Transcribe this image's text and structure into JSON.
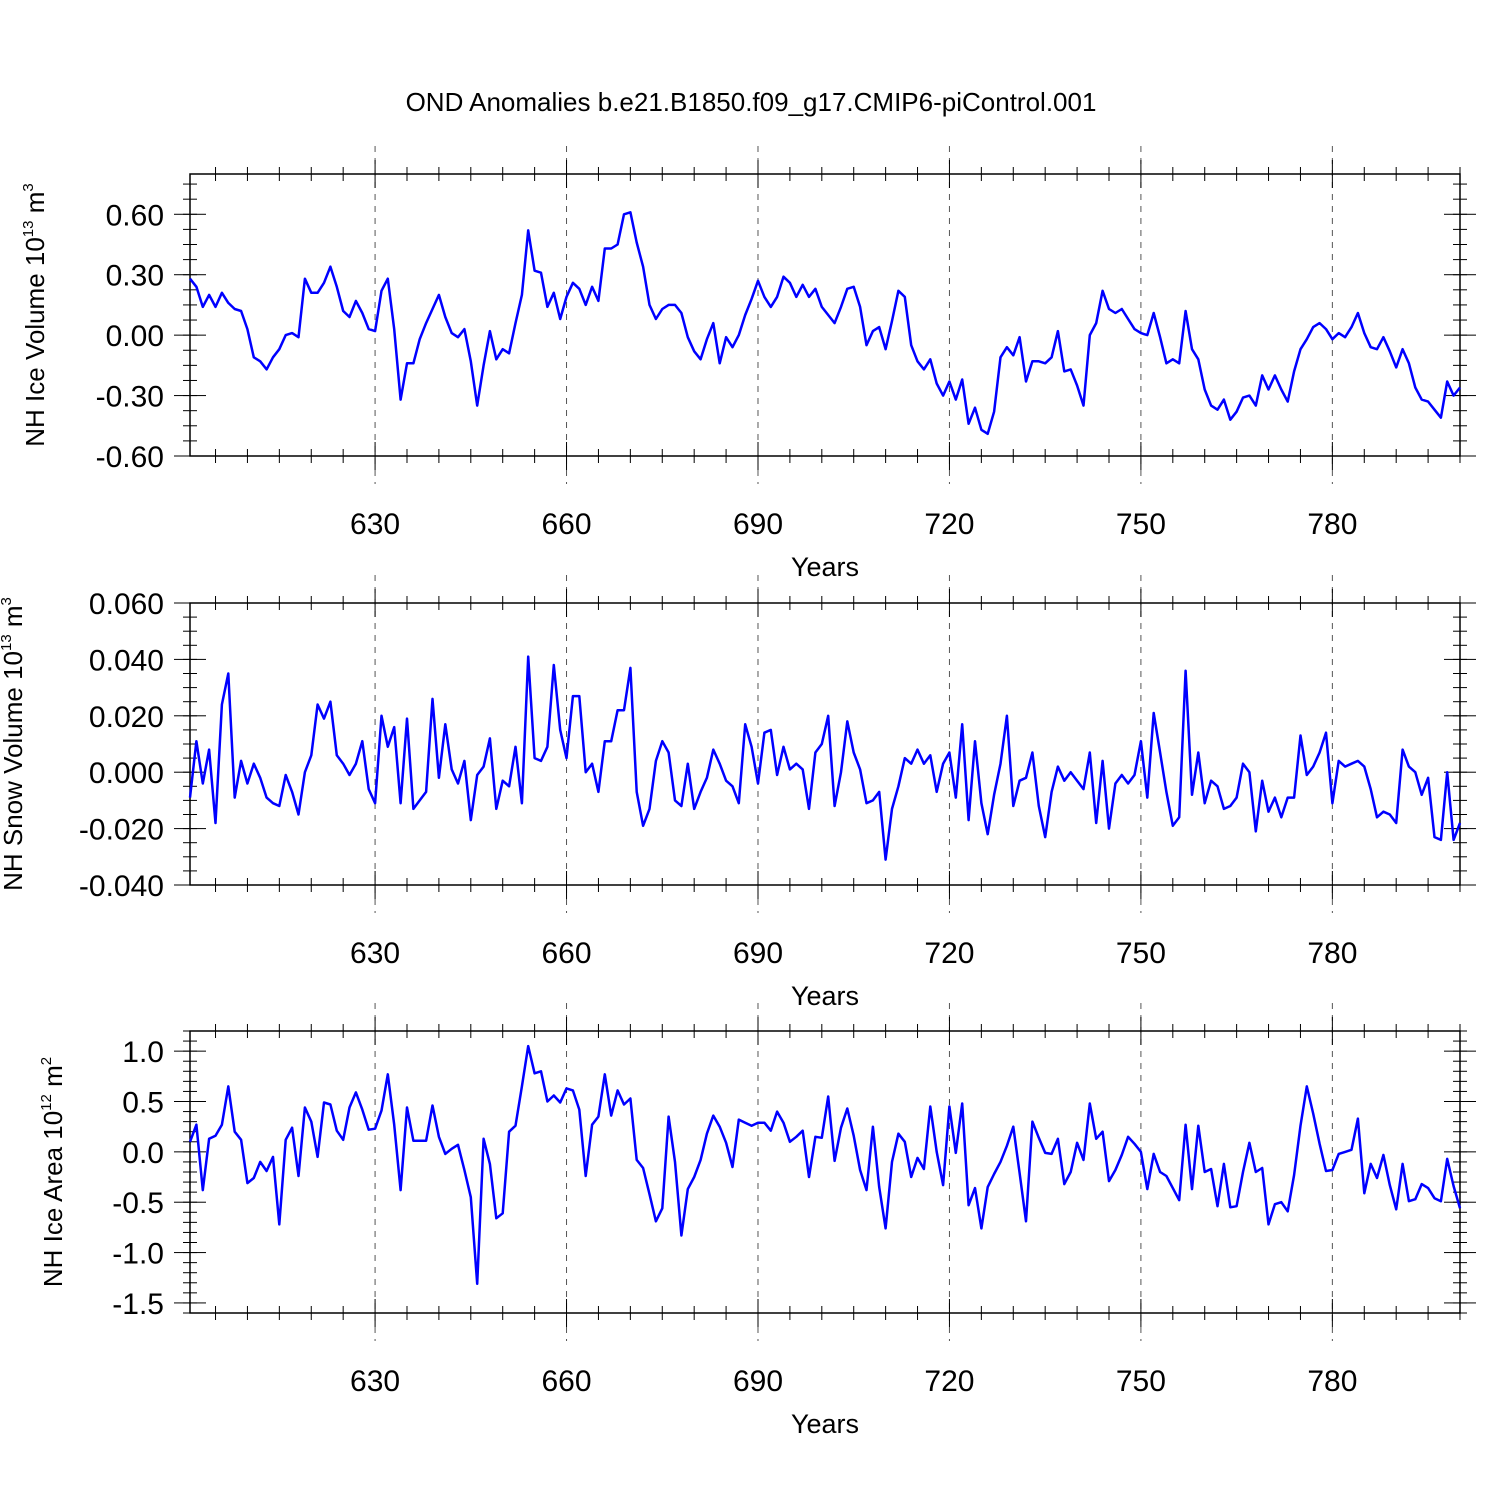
{
  "title": "OND Anomalies b.e21.B1850.f09_g17.CMIP6-piControl.001",
  "line_color": "#0000ff",
  "chart_data": [
    {
      "type": "line",
      "name": "ice-volume",
      "ylabel": {
        "main": "NH Ice Volume 10",
        "sup": "13",
        "mid": " m",
        "sup2": "3"
      },
      "xlabel": "Years",
      "xlim": [
        601,
        800
      ],
      "ylim": [
        -0.6,
        0.8
      ],
      "xticks": [
        630,
        660,
        690,
        720,
        750,
        780
      ],
      "xtick_labels": [
        "630",
        "660",
        "690",
        "720",
        "750",
        "780"
      ],
      "yticks": [
        -0.6,
        -0.3,
        0.0,
        0.3,
        0.6
      ],
      "ytick_labels": [
        "-0.60",
        "-0.30",
        "0.00",
        "0.30",
        "0.60"
      ],
      "yminor_step": 0.075,
      "x_start": 601,
      "values": [
        0.28,
        0.24,
        0.14,
        0.2,
        0.14,
        0.21,
        0.16,
        0.13,
        0.12,
        0.03,
        -0.11,
        -0.13,
        -0.17,
        -0.11,
        -0.07,
        0.0,
        0.01,
        -0.01,
        0.28,
        0.21,
        0.21,
        0.26,
        0.34,
        0.24,
        0.12,
        0.09,
        0.17,
        0.11,
        0.03,
        0.02,
        0.22,
        0.28,
        0.03,
        -0.32,
        -0.14,
        -0.14,
        -0.02,
        0.06,
        0.13,
        0.2,
        0.09,
        0.01,
        -0.01,
        0.03,
        -0.13,
        -0.35,
        -0.15,
        0.02,
        -0.12,
        -0.07,
        -0.09,
        0.06,
        0.2,
        0.52,
        0.32,
        0.31,
        0.14,
        0.21,
        0.08,
        0.19,
        0.26,
        0.23,
        0.15,
        0.24,
        0.17,
        0.43,
        0.43,
        0.45,
        0.6,
        0.61,
        0.46,
        0.34,
        0.15,
        0.08,
        0.13,
        0.15,
        0.15,
        0.11,
        -0.01,
        -0.08,
        -0.12,
        -0.02,
        0.06,
        -0.14,
        -0.01,
        -0.06,
        0.0,
        0.1,
        0.18,
        0.27,
        0.19,
        0.14,
        0.19,
        0.29,
        0.26,
        0.19,
        0.25,
        0.19,
        0.23,
        0.14,
        0.1,
        0.06,
        0.14,
        0.23,
        0.24,
        0.14,
        -0.05,
        0.02,
        0.04,
        -0.07,
        0.07,
        0.22,
        0.19,
        -0.05,
        -0.13,
        -0.17,
        -0.12,
        -0.24,
        -0.3,
        -0.23,
        -0.32,
        -0.22,
        -0.44,
        -0.36,
        -0.47,
        -0.49,
        -0.38,
        -0.11,
        -0.06,
        -0.1,
        -0.01,
        -0.23,
        -0.13,
        -0.13,
        -0.14,
        -0.11,
        0.02,
        -0.18,
        -0.17,
        -0.25,
        -0.35,
        0.0,
        0.06,
        0.22,
        0.13,
        0.11,
        0.13,
        0.08,
        0.03,
        0.01,
        0.0,
        0.11,
        -0.01,
        -0.14,
        -0.12,
        -0.14,
        0.12,
        -0.07,
        -0.12,
        -0.27,
        -0.35,
        -0.37,
        -0.32,
        -0.42,
        -0.38,
        -0.31,
        -0.3,
        -0.35,
        -0.2,
        -0.27,
        -0.2,
        -0.27,
        -0.33,
        -0.18,
        -0.07,
        -0.02,
        0.04,
        0.06,
        0.03,
        -0.02,
        0.01,
        -0.01,
        0.04,
        0.11,
        0.01,
        -0.06,
        -0.07,
        -0.01,
        -0.08,
        -0.16,
        -0.07,
        -0.14,
        -0.26,
        -0.32,
        -0.33,
        -0.37,
        -0.41,
        -0.23,
        -0.3,
        -0.26
      ]
    },
    {
      "type": "line",
      "name": "snow-volume",
      "ylabel": {
        "main": "NH Snow Volume 10",
        "sup": "13",
        "mid": " m",
        "sup2": "3"
      },
      "xlabel": "Years",
      "xlim": [
        601,
        800
      ],
      "ylim": [
        -0.04,
        0.06
      ],
      "xticks": [
        630,
        660,
        690,
        720,
        750,
        780
      ],
      "xtick_labels": [
        "630",
        "660",
        "690",
        "720",
        "750",
        "780"
      ],
      "yticks": [
        -0.04,
        -0.02,
        0.0,
        0.02,
        0.04,
        0.06
      ],
      "ytick_labels": [
        "-0.040",
        "-0.020",
        "0.000",
        "0.020",
        "0.040",
        "0.060"
      ],
      "yminor_step": 0.005,
      "x_start": 601,
      "values": [
        -0.009,
        0.011,
        -0.004,
        0.008,
        -0.018,
        0.024,
        0.035,
        -0.009,
        0.004,
        -0.004,
        0.003,
        -0.002,
        -0.009,
        -0.011,
        -0.012,
        -0.001,
        -0.007,
        -0.015,
        0.0,
        0.006,
        0.024,
        0.019,
        0.025,
        0.006,
        0.003,
        -0.001,
        0.003,
        0.011,
        -0.006,
        -0.011,
        0.02,
        0.009,
        0.016,
        -0.011,
        0.019,
        -0.013,
        -0.01,
        -0.007,
        0.026,
        -0.002,
        0.017,
        0.001,
        -0.004,
        0.004,
        -0.017,
        -0.001,
        0.002,
        0.012,
        -0.013,
        -0.003,
        -0.005,
        0.009,
        -0.011,
        0.041,
        0.005,
        0.004,
        0.009,
        0.038,
        0.015,
        0.005,
        0.027,
        0.027,
        0.0,
        0.003,
        -0.007,
        0.011,
        0.011,
        0.022,
        0.022,
        0.037,
        -0.007,
        -0.019,
        -0.013,
        0.004,
        0.011,
        0.007,
        -0.01,
        -0.012,
        0.003,
        -0.013,
        -0.007,
        -0.002,
        0.008,
        0.003,
        -0.003,
        -0.005,
        -0.011,
        0.017,
        0.009,
        -0.004,
        0.014,
        0.015,
        -0.001,
        0.009,
        0.001,
        0.003,
        0.001,
        -0.013,
        0.007,
        0.01,
        0.02,
        -0.012,
        0.0,
        0.018,
        0.007,
        0.001,
        -0.011,
        -0.01,
        -0.007,
        -0.031,
        -0.013,
        -0.005,
        0.005,
        0.003,
        0.008,
        0.003,
        0.006,
        -0.007,
        0.003,
        0.007,
        -0.009,
        0.017,
        -0.017,
        0.011,
        -0.011,
        -0.022,
        -0.008,
        0.003,
        0.02,
        -0.012,
        -0.003,
        -0.002,
        0.007,
        -0.012,
        -0.023,
        -0.007,
        0.002,
        -0.003,
        0.0,
        -0.003,
        -0.006,
        0.007,
        -0.018,
        0.004,
        -0.02,
        -0.004,
        -0.001,
        -0.004,
        -0.001,
        0.011,
        -0.009,
        0.021,
        0.007,
        -0.007,
        -0.019,
        -0.016,
        0.036,
        -0.008,
        0.007,
        -0.011,
        -0.003,
        -0.005,
        -0.013,
        -0.012,
        -0.009,
        0.003,
        0.0,
        -0.021,
        -0.003,
        -0.014,
        -0.009,
        -0.016,
        -0.009,
        -0.009,
        0.013,
        -0.001,
        0.002,
        0.007,
        0.014,
        -0.011,
        0.004,
        0.002,
        0.003,
        0.004,
        0.002,
        -0.006,
        -0.016,
        -0.014,
        -0.015,
        -0.018,
        0.008,
        0.002,
        0.0,
        -0.008,
        -0.002,
        -0.023,
        -0.024,
        0.0,
        -0.024,
        -0.018
      ]
    },
    {
      "type": "line",
      "name": "ice-area",
      "ylabel": {
        "main": "NH Ice Area 10",
        "sup": "12",
        "mid": " m",
        "sup2": "2"
      },
      "xlabel": "Years",
      "xlim": [
        601,
        800
      ],
      "ylim": [
        -1.6,
        1.2
      ],
      "xticks": [
        630,
        660,
        690,
        720,
        750,
        780
      ],
      "xtick_labels": [
        "630",
        "660",
        "690",
        "720",
        "750",
        "780"
      ],
      "yticks": [
        -1.5,
        -1.0,
        -0.5,
        0.0,
        0.5,
        1.0
      ],
      "ytick_labels": [
        "-1.5",
        "-1.0",
        "-0.5",
        "0.0",
        "0.5",
        "1.0"
      ],
      "yminor_step": 0.1,
      "x_start": 601,
      "values": [
        0.1,
        0.27,
        -0.38,
        0.13,
        0.16,
        0.27,
        0.65,
        0.2,
        0.12,
        -0.31,
        -0.26,
        -0.1,
        -0.19,
        -0.05,
        -0.72,
        0.12,
        0.24,
        -0.24,
        0.44,
        0.3,
        -0.05,
        0.49,
        0.47,
        0.21,
        0.12,
        0.44,
        0.59,
        0.42,
        0.22,
        0.23,
        0.41,
        0.77,
        0.27,
        -0.38,
        0.44,
        0.11,
        0.11,
        0.11,
        0.46,
        0.15,
        -0.02,
        0.03,
        0.07,
        -0.18,
        -0.45,
        -1.31,
        0.13,
        -0.12,
        -0.66,
        -0.61,
        0.2,
        0.26,
        0.65,
        1.05,
        0.78,
        0.8,
        0.5,
        0.56,
        0.49,
        0.63,
        0.61,
        0.42,
        -0.24,
        0.27,
        0.35,
        0.77,
        0.36,
        0.61,
        0.47,
        0.53,
        -0.08,
        -0.16,
        -0.42,
        -0.69,
        -0.56,
        0.35,
        -0.1,
        -0.83,
        -0.37,
        -0.25,
        -0.08,
        0.18,
        0.36,
        0.25,
        0.09,
        -0.15,
        0.32,
        0.29,
        0.26,
        0.29,
        0.29,
        0.21,
        0.4,
        0.29,
        0.1,
        0.15,
        0.21,
        -0.25,
        0.15,
        0.14,
        0.55,
        -0.09,
        0.24,
        0.43,
        0.16,
        -0.18,
        -0.38,
        0.25,
        -0.35,
        -0.76,
        -0.1,
        0.18,
        0.1,
        -0.25,
        -0.06,
        -0.17,
        0.45,
        0.0,
        -0.33,
        0.45,
        -0.01,
        0.48,
        -0.53,
        -0.36,
        -0.76,
        -0.35,
        -0.22,
        -0.1,
        0.06,
        0.25,
        -0.21,
        -0.69,
        0.3,
        0.14,
        -0.01,
        -0.02,
        0.13,
        -0.32,
        -0.2,
        0.09,
        -0.08,
        0.48,
        0.13,
        0.2,
        -0.29,
        -0.18,
        -0.03,
        0.15,
        0.08,
        0.0,
        -0.37,
        -0.02,
        -0.2,
        -0.24,
        -0.36,
        -0.48,
        0.27,
        -0.37,
        0.26,
        -0.2,
        -0.17,
        -0.54,
        -0.12,
        -0.55,
        -0.54,
        -0.2,
        0.09,
        -0.2,
        -0.16,
        -0.72,
        -0.52,
        -0.5,
        -0.59,
        -0.23,
        0.26,
        0.65,
        0.38,
        0.08,
        -0.19,
        -0.18,
        -0.02,
        0.0,
        0.02,
        0.33,
        -0.41,
        -0.12,
        -0.26,
        -0.03,
        -0.33,
        -0.57,
        -0.12,
        -0.49,
        -0.47,
        -0.32,
        -0.36,
        -0.46,
        -0.49,
        -0.07,
        -0.34,
        -0.56
      ]
    }
  ]
}
